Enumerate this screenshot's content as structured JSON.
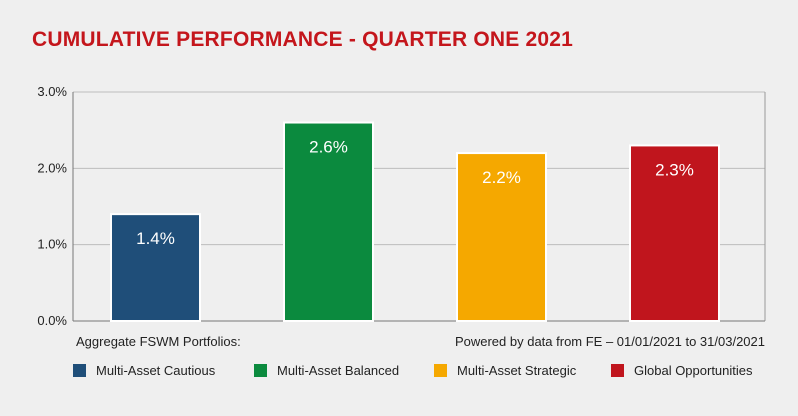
{
  "chart_data": {
    "type": "bar",
    "title": "CUMULATIVE PERFORMANCE - QUARTER ONE 2021",
    "categories": [
      "Multi-Asset Cautious",
      "Multi-Asset Balanced",
      "Multi-Asset Strategic",
      "Global Opportunities"
    ],
    "values": [
      1.4,
      2.6,
      2.2,
      2.3
    ],
    "data_labels": [
      "1.4%",
      "2.6%",
      "2.2%",
      "2.3%"
    ],
    "colors": [
      "#1f4e79",
      "#0b8a3e",
      "#f5a800",
      "#c0151d"
    ],
    "y_ticks": [
      0,
      1,
      2,
      3
    ],
    "y_tick_labels": [
      "0.0%",
      "1.0%",
      "2.0%",
      "3.0%"
    ],
    "ylim": [
      0,
      3
    ],
    "grid": true,
    "legend_position": "bottom",
    "xlabel": "",
    "ylabel": ""
  },
  "footer": {
    "left": "Aggregate FSWM Portfolios:",
    "right": "Powered by data from FE – 01/01/2021 to 31/03/2021"
  }
}
